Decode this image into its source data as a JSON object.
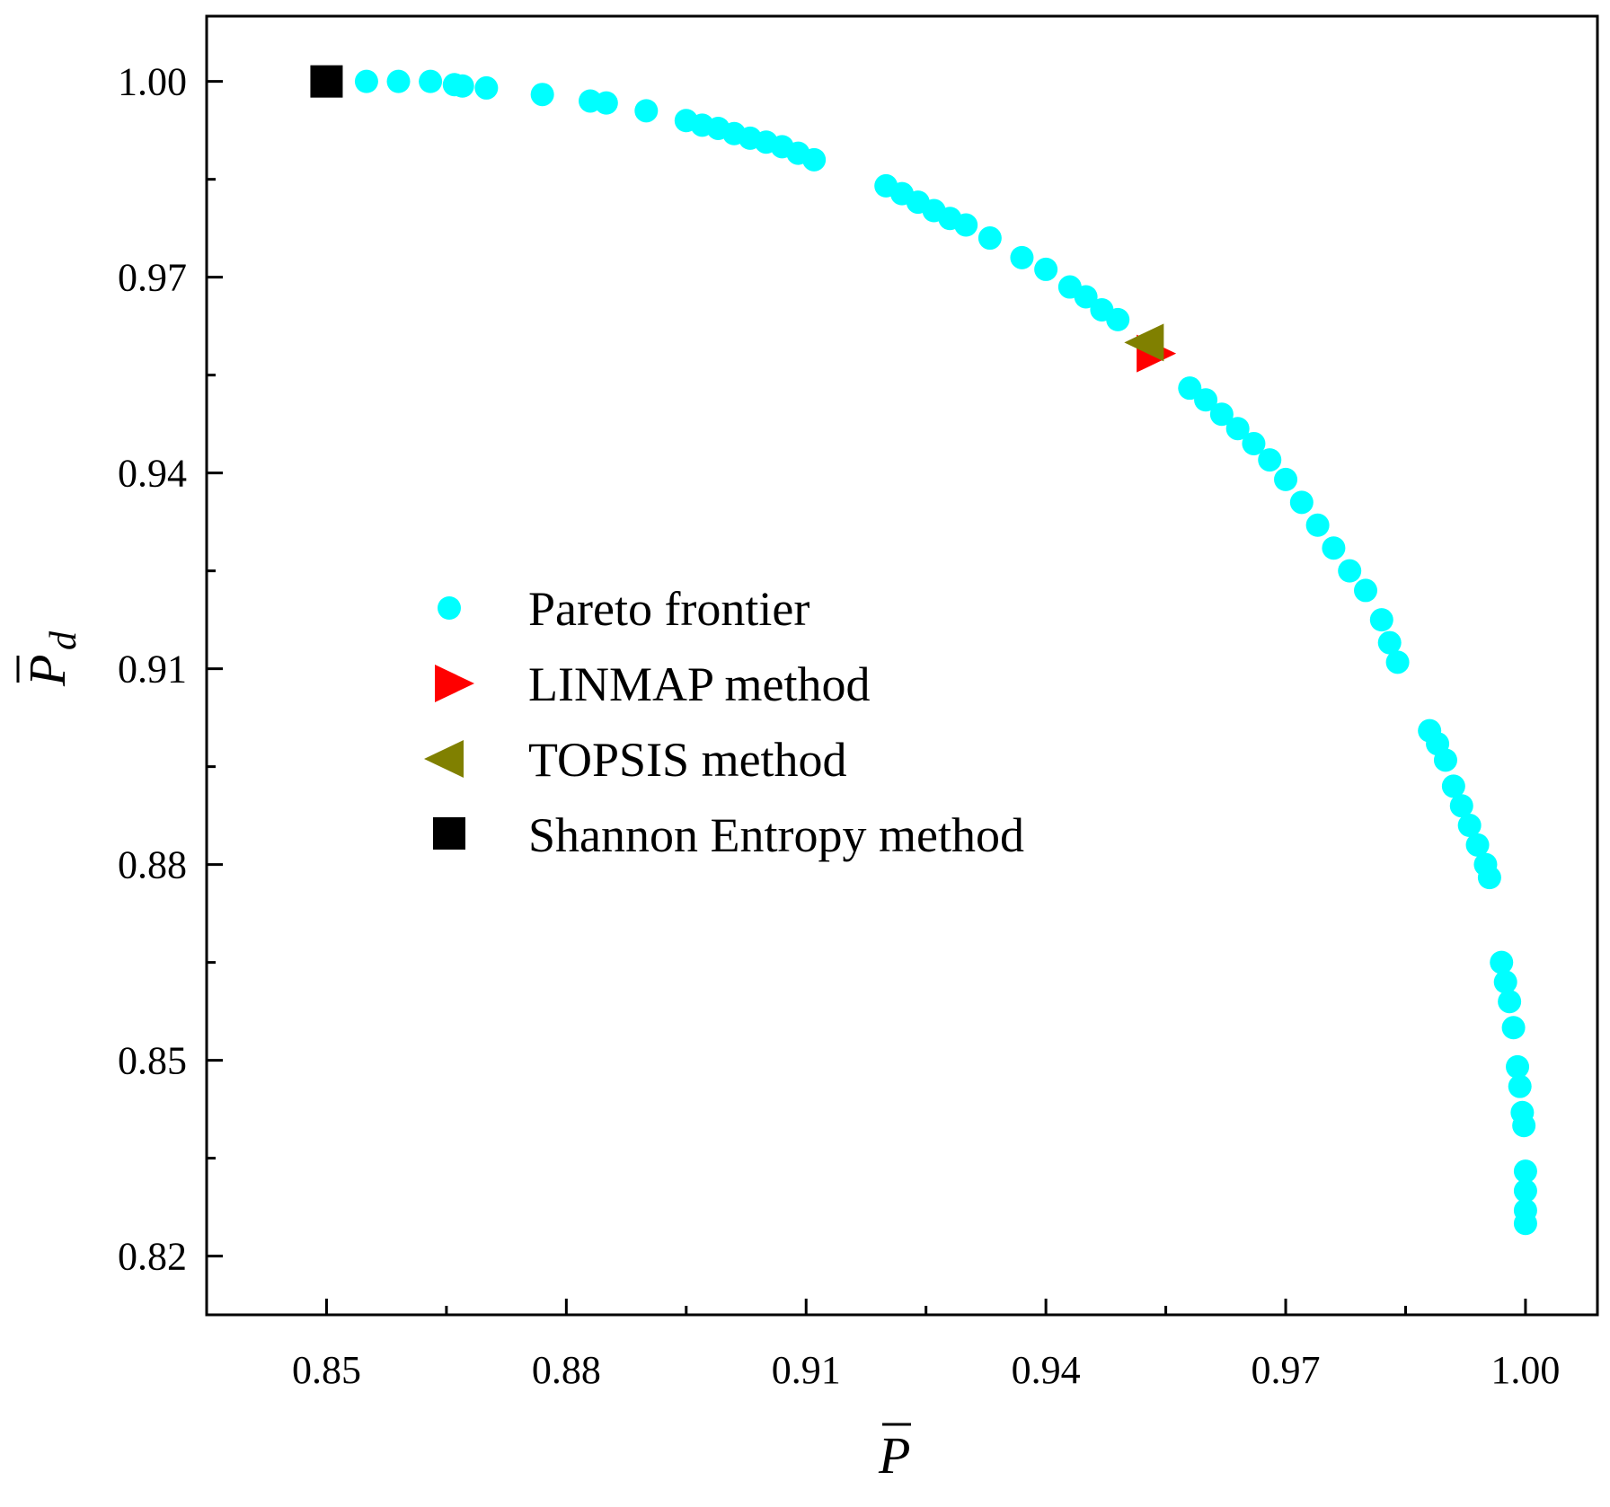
{
  "chart_data": {
    "type": "scatter",
    "title": "",
    "xlabel": "P",
    "ylabel": "P",
    "ylabel_subscript": "d",
    "xlim": [
      0.835,
      1.009
    ],
    "ylim": [
      0.811,
      1.01
    ],
    "x_ticks": [
      0.85,
      0.88,
      0.91,
      0.94,
      0.97,
      1.0
    ],
    "x_tick_labels": [
      "0.85",
      "0.88",
      "0.91",
      "0.94",
      "0.97",
      "1.00"
    ],
    "y_ticks": [
      0.82,
      0.85,
      0.88,
      0.91,
      0.94,
      0.97,
      1.0
    ],
    "y_tick_labels": [
      "0.82",
      "0.85",
      "0.88",
      "0.91",
      "0.94",
      "0.97",
      "1.00"
    ],
    "grid": false,
    "legend_position": "center-left",
    "colors": {
      "pareto": "#00ffff",
      "linmap": "#ff0000",
      "topsis": "#808000",
      "shannon": "#000000"
    },
    "series": [
      {
        "name": "Pareto frontier",
        "marker": "circle",
        "points": [
          [
            0.855,
            1.0
          ],
          [
            0.859,
            1.0
          ],
          [
            0.863,
            1.0
          ],
          [
            0.866,
            0.9995
          ],
          [
            0.867,
            0.9993
          ],
          [
            0.87,
            0.999
          ],
          [
            0.877,
            0.998
          ],
          [
            0.883,
            0.997
          ],
          [
            0.885,
            0.9967
          ],
          [
            0.89,
            0.9955
          ],
          [
            0.895,
            0.994
          ],
          [
            0.897,
            0.9933
          ],
          [
            0.899,
            0.9928
          ],
          [
            0.901,
            0.992
          ],
          [
            0.903,
            0.9913
          ],
          [
            0.905,
            0.9907
          ],
          [
            0.907,
            0.99
          ],
          [
            0.909,
            0.989
          ],
          [
            0.911,
            0.988
          ],
          [
            0.92,
            0.984
          ],
          [
            0.922,
            0.9828
          ],
          [
            0.924,
            0.9815
          ],
          [
            0.926,
            0.9802
          ],
          [
            0.928,
            0.979
          ],
          [
            0.93,
            0.978
          ],
          [
            0.933,
            0.976
          ],
          [
            0.937,
            0.973
          ],
          [
            0.94,
            0.9712
          ],
          [
            0.943,
            0.9685
          ],
          [
            0.945,
            0.967
          ],
          [
            0.947,
            0.965
          ],
          [
            0.949,
            0.9635
          ],
          [
            0.958,
            0.953
          ],
          [
            0.96,
            0.9512
          ],
          [
            0.962,
            0.949
          ],
          [
            0.964,
            0.9468
          ],
          [
            0.966,
            0.9445
          ],
          [
            0.968,
            0.942
          ],
          [
            0.97,
            0.939
          ],
          [
            0.972,
            0.9355
          ],
          [
            0.974,
            0.932
          ],
          [
            0.976,
            0.9285
          ],
          [
            0.978,
            0.925
          ],
          [
            0.98,
            0.922
          ],
          [
            0.982,
            0.9175
          ],
          [
            0.983,
            0.914
          ],
          [
            0.984,
            0.911
          ],
          [
            0.988,
            0.9005
          ],
          [
            0.989,
            0.8985
          ],
          [
            0.99,
            0.896
          ],
          [
            0.991,
            0.892
          ],
          [
            0.992,
            0.889
          ],
          [
            0.993,
            0.886
          ],
          [
            0.994,
            0.883
          ],
          [
            0.995,
            0.88
          ],
          [
            0.9955,
            0.878
          ],
          [
            0.997,
            0.865
          ],
          [
            0.9975,
            0.862
          ],
          [
            0.998,
            0.859
          ],
          [
            0.9985,
            0.855
          ],
          [
            0.999,
            0.849
          ],
          [
            0.9993,
            0.846
          ],
          [
            0.9996,
            0.842
          ],
          [
            0.9998,
            0.84
          ],
          [
            1.0,
            0.833
          ],
          [
            1.0,
            0.83
          ],
          [
            1.0,
            0.827
          ],
          [
            1.0,
            0.825
          ]
        ]
      },
      {
        "name": "LINMAP method",
        "marker": "triangle-right",
        "points": [
          [
            0.9536,
            0.9583
          ]
        ]
      },
      {
        "name": "TOPSIS method",
        "marker": "triangle-left",
        "points": [
          [
            0.9525,
            0.96
          ]
        ]
      },
      {
        "name": "Shannon Entropy method",
        "marker": "square",
        "points": [
          [
            0.85,
            1.0
          ]
        ]
      }
    ]
  }
}
